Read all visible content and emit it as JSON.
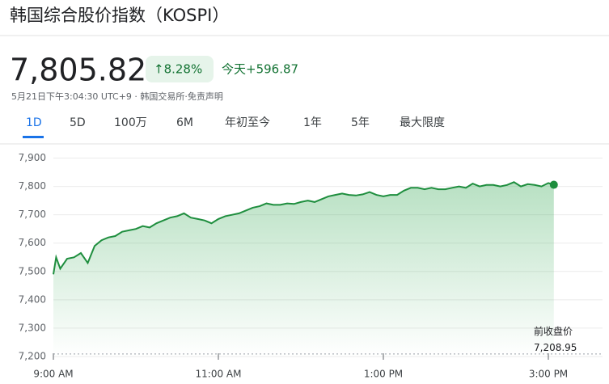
{
  "header": {
    "title": "韩国综合股价指数（KOSPI）",
    "price": "7,805.82",
    "change_pct": "↑8.28%",
    "change_today": "今天+596.87",
    "timestamp": "5月21日下午3:04:30 UTC+9 · 韩国交易所·免责声明"
  },
  "tabs": [
    "1D",
    "5D",
    "100万",
    "6M",
    "年初至今",
    "1年",
    "5年",
    "最大限度"
  ],
  "chart_data": {
    "type": "line",
    "x": [
      540,
      542,
      545,
      550,
      555,
      560,
      565,
      570,
      575,
      580,
      585,
      590,
      595,
      600,
      605,
      610,
      615,
      620,
      625,
      630,
      635,
      640,
      645,
      650,
      655,
      660,
      665,
      670,
      675,
      680,
      685,
      690,
      695,
      700,
      705,
      710,
      715,
      720,
      725,
      730,
      735,
      740,
      745,
      750,
      755,
      760,
      765,
      770,
      775,
      780,
      785,
      790,
      795,
      800,
      805,
      810,
      815,
      820,
      825,
      830,
      835,
      840,
      845,
      850,
      855,
      860,
      865,
      870,
      875,
      880,
      885,
      890,
      895,
      900,
      904
    ],
    "series": [
      {
        "name": "KOSPI",
        "color": "#1e8e3e",
        "values": [
          7490,
          7550,
          7510,
          7545,
          7550,
          7565,
          7530,
          7590,
          7610,
          7620,
          7625,
          7640,
          7645,
          7650,
          7660,
          7655,
          7670,
          7680,
          7690,
          7695,
          7705,
          7690,
          7685,
          7680,
          7670,
          7685,
          7695,
          7700,
          7705,
          7715,
          7725,
          7730,
          7740,
          7735,
          7735,
          7740,
          7738,
          7745,
          7750,
          7745,
          7755,
          7765,
          7770,
          7775,
          7770,
          7768,
          7772,
          7780,
          7770,
          7765,
          7770,
          7770,
          7785,
          7795,
          7795,
          7790,
          7795,
          7790,
          7790,
          7795,
          7800,
          7795,
          7810,
          7800,
          7805,
          7805,
          7800,
          7805,
          7815,
          7800,
          7808,
          7805,
          7800,
          7812,
          7805.82
        ]
      }
    ],
    "xlim": [
      540,
      930
    ],
    "xticks": [
      {
        "value": 540,
        "label": "9:00 AM"
      },
      {
        "value": 660,
        "label": "11:00 AM"
      },
      {
        "value": 780,
        "label": "1:00 PM"
      },
      {
        "value": 900,
        "label": "3:00 PM"
      }
    ],
    "ylim": [
      7200,
      7930
    ],
    "yticks": [
      {
        "value": 7200,
        "label": "7,200"
      },
      {
        "value": 7300,
        "label": "7,300"
      },
      {
        "value": 7400,
        "label": "7,400"
      },
      {
        "value": 7500,
        "label": "7,500"
      },
      {
        "value": 7600,
        "label": "7,600"
      },
      {
        "value": 7700,
        "label": "7,700"
      },
      {
        "value": 7800,
        "label": "7,800"
      },
      {
        "value": 7900,
        "label": "7,900"
      }
    ],
    "grid": true,
    "prev_close": {
      "label": "前收盘价",
      "value": 7208.95,
      "value_label": "7,208.95"
    }
  }
}
